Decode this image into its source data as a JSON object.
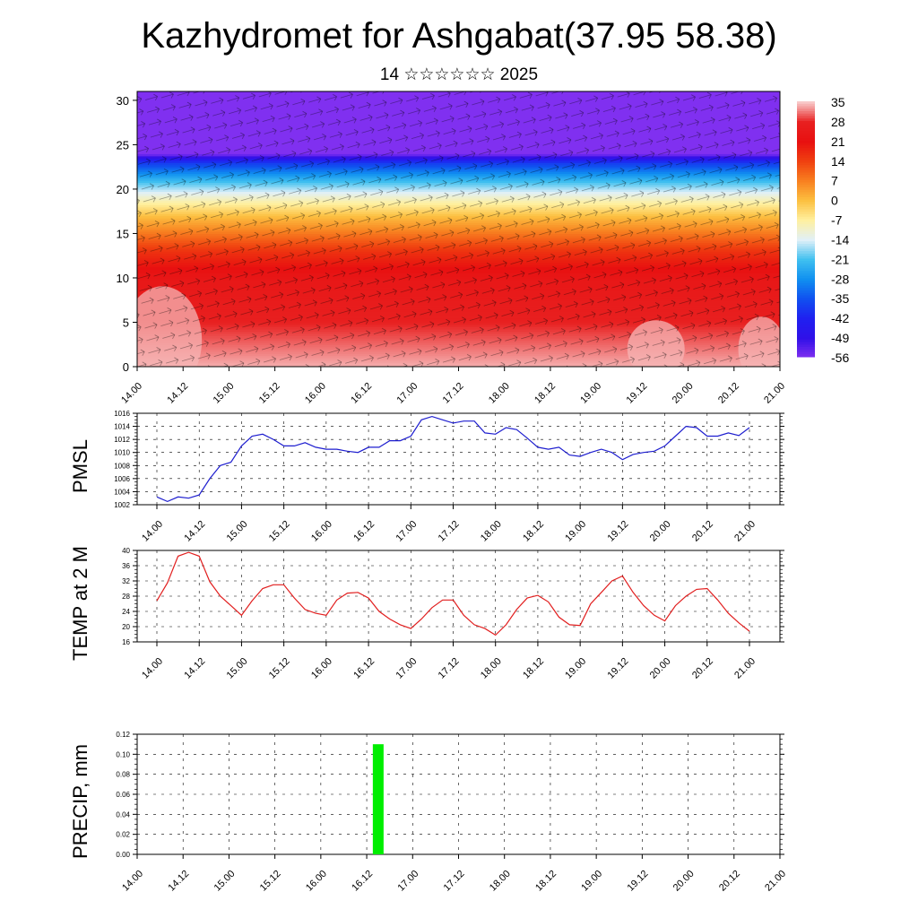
{
  "header": {
    "title": "Kazhydromet for Ashgabat(37.95 58.38)",
    "subtitle": "14 ☆☆☆☆☆☆ 2025"
  },
  "time_labels": [
    "14.00",
    "14.12",
    "15.00",
    "15.12",
    "16.00",
    "16.12",
    "17.00",
    "17.12",
    "18.00",
    "18.12",
    "19.00",
    "19.12",
    "20.00",
    "20.12",
    "21.00"
  ],
  "chart_data": [
    {
      "type": "heatmap",
      "name": "temperature-cross-section",
      "x": [
        "14.00",
        "14.12",
        "15.00",
        "15.12",
        "16.00",
        "16.12",
        "17.00",
        "17.12",
        "18.00",
        "18.12",
        "19.00",
        "19.12",
        "20.00",
        "20.12",
        "21.00"
      ],
      "yticks": [
        0,
        5,
        10,
        15,
        20,
        25,
        30
      ],
      "ylim": [
        0,
        31
      ],
      "levels": [
        0,
        5,
        10,
        13,
        15,
        17,
        19,
        21,
        23,
        24,
        26,
        31
      ],
      "level_values": [
        34,
        28,
        24,
        16,
        8,
        0,
        -10,
        -22,
        -38,
        -56,
        -62,
        -64
      ],
      "colorbar": {
        "labels": [
          "35",
          "28",
          "21",
          "14",
          "7",
          "0",
          "-7",
          "-14",
          "-21",
          "-28",
          "-35",
          "-42",
          "-49",
          "-56"
        ],
        "colors": [
          "#f8c8c8",
          "#e82020",
          "#e81010",
          "#f04010",
          "#f88020",
          "#fcc040",
          "#fff0a0",
          "#e0f0f8",
          "#40c0f0",
          "#1090f0",
          "#1050f0",
          "#2020f0",
          "#3010e8",
          "#8030f0"
        ]
      },
      "overlay": "wind arrows"
    },
    {
      "type": "line",
      "ylabel": "PMSL",
      "ylim": [
        1002,
        1016
      ],
      "yticks": [
        1002,
        1004,
        1006,
        1008,
        1010,
        1012,
        1014,
        1016
      ],
      "color": "#1e1ecf",
      "x": [
        0,
        3,
        6,
        9,
        12,
        15,
        18,
        21,
        24,
        27,
        30,
        33,
        36,
        39,
        42,
        45,
        48,
        51,
        54,
        57,
        60,
        63,
        66,
        69,
        72,
        75,
        78,
        81,
        84,
        87,
        90,
        93,
        96,
        99,
        102,
        105,
        108,
        111,
        114,
        117,
        120,
        123,
        126,
        129,
        132,
        135,
        138,
        141,
        144,
        147,
        150,
        153,
        156,
        159,
        162,
        165,
        168
      ],
      "values": [
        1003.2,
        1002.5,
        1003.2,
        1003.0,
        1003.5,
        1006.0,
        1008.0,
        1008.5,
        1011.0,
        1012.5,
        1012.8,
        1012.0,
        1011.0,
        1011.0,
        1011.5,
        1010.8,
        1010.5,
        1010.5,
        1010.2,
        1010.0,
        1010.8,
        1010.8,
        1011.8,
        1011.8,
        1012.5,
        1015.0,
        1015.5,
        1015.0,
        1014.5,
        1014.8,
        1014.8,
        1013.0,
        1012.8,
        1013.8,
        1013.5,
        1012.2,
        1010.8,
        1010.5,
        1010.8,
        1009.6,
        1009.4,
        1010.0,
        1010.5,
        1010.0,
        1008.9,
        1009.7,
        1010.0,
        1010.2,
        1011.0,
        1012.5,
        1014.0,
        1013.8,
        1012.5,
        1012.5,
        1013.0,
        1012.6,
        1013.8
      ]
    },
    {
      "type": "line",
      "ylabel": "TEMP at 2 M",
      "ylim": [
        16,
        40
      ],
      "yticks": [
        16,
        20,
        24,
        28,
        32,
        36,
        40
      ],
      "color": "#e11e1e",
      "x": [
        0,
        3,
        6,
        9,
        12,
        15,
        18,
        21,
        24,
        27,
        30,
        33,
        36,
        39,
        42,
        45,
        48,
        51,
        54,
        57,
        60,
        63,
        66,
        69,
        72,
        75,
        78,
        81,
        84,
        87,
        90,
        93,
        96,
        99,
        102,
        105,
        108,
        111,
        114,
        117,
        120,
        123,
        126,
        129,
        132,
        135,
        138,
        141,
        144,
        147,
        150,
        153,
        156,
        159,
        162,
        165,
        168
      ],
      "values": [
        26.8,
        31.5,
        38.5,
        39.5,
        38.5,
        31.8,
        28.0,
        25.5,
        23.0,
        26.8,
        30.0,
        31.0,
        31.0,
        27.5,
        24.5,
        23.5,
        23.0,
        27.0,
        28.8,
        29.0,
        27.5,
        24.0,
        22.0,
        20.5,
        19.5,
        22.0,
        25.0,
        27.0,
        27.0,
        23.0,
        20.5,
        19.5,
        17.8,
        20.5,
        24.5,
        27.5,
        28.2,
        26.5,
        22.5,
        20.5,
        20.3,
        26.0,
        29.0,
        32.0,
        33.3,
        29.0,
        25.5,
        23.0,
        21.5,
        25.5,
        28.0,
        29.8,
        30.0,
        27.0,
        23.5,
        21.0,
        18.8
      ]
    },
    {
      "type": "bar",
      "ylabel": "PRECIP, mm",
      "ylim": [
        0,
        0.12
      ],
      "yticks": [
        "0.00",
        "0.02",
        "0.04",
        "0.06",
        "0.08",
        "0.10",
        "0.12"
      ],
      "color": "#00ee00",
      "bars": [
        {
          "x": 63,
          "value": 0.11
        }
      ]
    }
  ]
}
